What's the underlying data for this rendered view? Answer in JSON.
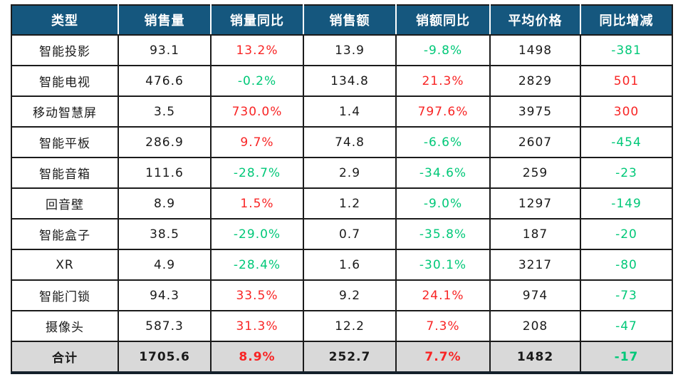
{
  "colors": {
    "header_bg": "#15577E",
    "header_text": "#FFFFFF",
    "up": "#F82424",
    "down": "#00C878",
    "total_row_bg": "#D9D9D9",
    "border": "#1B1B1B",
    "text": "#1A1A1A"
  },
  "chart_data": {
    "type": "table",
    "columns": [
      "类型",
      "销售量",
      "销量同比",
      "销售额",
      "销额同比",
      "平均价格",
      "同比增减"
    ],
    "rows": [
      {
        "cells": [
          {
            "text": "智能投影"
          },
          {
            "text": "93.1"
          },
          {
            "text": "13.2%",
            "color": "up"
          },
          {
            "text": "13.9"
          },
          {
            "text": "-9.8%",
            "color": "down"
          },
          {
            "text": "1498"
          },
          {
            "text": "-381",
            "color": "down"
          }
        ]
      },
      {
        "cells": [
          {
            "text": "智能电视"
          },
          {
            "text": "476.6"
          },
          {
            "text": "-0.2%",
            "color": "down"
          },
          {
            "text": "134.8"
          },
          {
            "text": "21.3%",
            "color": "up"
          },
          {
            "text": "2829"
          },
          {
            "text": "501",
            "color": "up"
          }
        ]
      },
      {
        "cells": [
          {
            "text": "移动智慧屏"
          },
          {
            "text": "3.5"
          },
          {
            "text": "730.0%",
            "color": "up"
          },
          {
            "text": "1.4"
          },
          {
            "text": "797.6%",
            "color": "up"
          },
          {
            "text": "3975"
          },
          {
            "text": "300",
            "color": "up"
          }
        ]
      },
      {
        "cells": [
          {
            "text": "智能平板"
          },
          {
            "text": "286.9"
          },
          {
            "text": "9.7%",
            "color": "up"
          },
          {
            "text": "74.8"
          },
          {
            "text": "-6.6%",
            "color": "down"
          },
          {
            "text": "2607"
          },
          {
            "text": "-454",
            "color": "down"
          }
        ]
      },
      {
        "cells": [
          {
            "text": "智能音箱"
          },
          {
            "text": "111.6"
          },
          {
            "text": "-28.7%",
            "color": "down"
          },
          {
            "text": "2.9"
          },
          {
            "text": "-34.6%",
            "color": "down"
          },
          {
            "text": "259"
          },
          {
            "text": "-23",
            "color": "down"
          }
        ]
      },
      {
        "cells": [
          {
            "text": "回音壁"
          },
          {
            "text": "8.9"
          },
          {
            "text": "1.5%",
            "color": "up"
          },
          {
            "text": "1.2"
          },
          {
            "text": "-9.0%",
            "color": "down"
          },
          {
            "text": "1297"
          },
          {
            "text": "-149",
            "color": "down"
          }
        ]
      },
      {
        "cells": [
          {
            "text": "智能盒子"
          },
          {
            "text": "38.5"
          },
          {
            "text": "-29.0%",
            "color": "down"
          },
          {
            "text": "0.7"
          },
          {
            "text": "-35.8%",
            "color": "down"
          },
          {
            "text": "187"
          },
          {
            "text": "-20",
            "color": "down"
          }
        ]
      },
      {
        "cells": [
          {
            "text": "XR"
          },
          {
            "text": "4.9"
          },
          {
            "text": "-28.4%",
            "color": "down"
          },
          {
            "text": "1.6"
          },
          {
            "text": "-30.1%",
            "color": "down"
          },
          {
            "text": "3217"
          },
          {
            "text": "-80",
            "color": "down"
          }
        ]
      },
      {
        "cells": [
          {
            "text": "智能门锁"
          },
          {
            "text": "94.3"
          },
          {
            "text": "33.5%",
            "color": "up"
          },
          {
            "text": "9.2"
          },
          {
            "text": "24.1%",
            "color": "up"
          },
          {
            "text": "974"
          },
          {
            "text": "-73",
            "color": "down"
          }
        ]
      },
      {
        "cells": [
          {
            "text": "摄像头"
          },
          {
            "text": "587.3"
          },
          {
            "text": "31.3%",
            "color": "up"
          },
          {
            "text": "12.2"
          },
          {
            "text": "7.3%",
            "color": "up"
          },
          {
            "text": "208"
          },
          {
            "text": "-47",
            "color": "down"
          }
        ]
      }
    ],
    "total": {
      "cells": [
        {
          "text": "合计"
        },
        {
          "text": "1705.6"
        },
        {
          "text": "8.9%",
          "color": "up"
        },
        {
          "text": "252.7"
        },
        {
          "text": "7.7%",
          "color": "up"
        },
        {
          "text": "1482"
        },
        {
          "text": "-17",
          "color": "down"
        }
      ]
    }
  }
}
